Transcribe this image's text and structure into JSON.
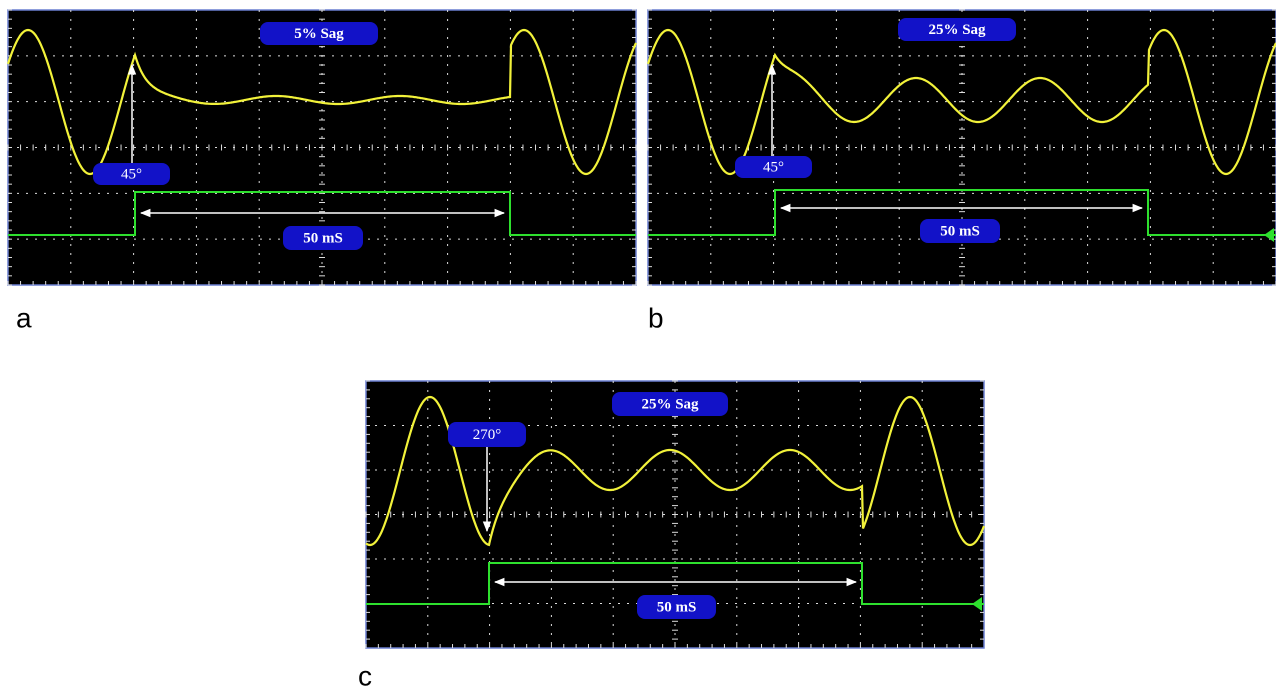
{
  "panels": [
    {
      "label": "a",
      "sag_label": "5% Sag",
      "angle_label": "45°",
      "duration_label": "50 mS"
    },
    {
      "label": "b",
      "sag_label": "25% Sag",
      "angle_label": "45°",
      "duration_label": "50 mS"
    },
    {
      "label": "c",
      "sag_label": "25% Sag",
      "angle_label": "270°",
      "duration_label": "50 mS"
    }
  ]
}
